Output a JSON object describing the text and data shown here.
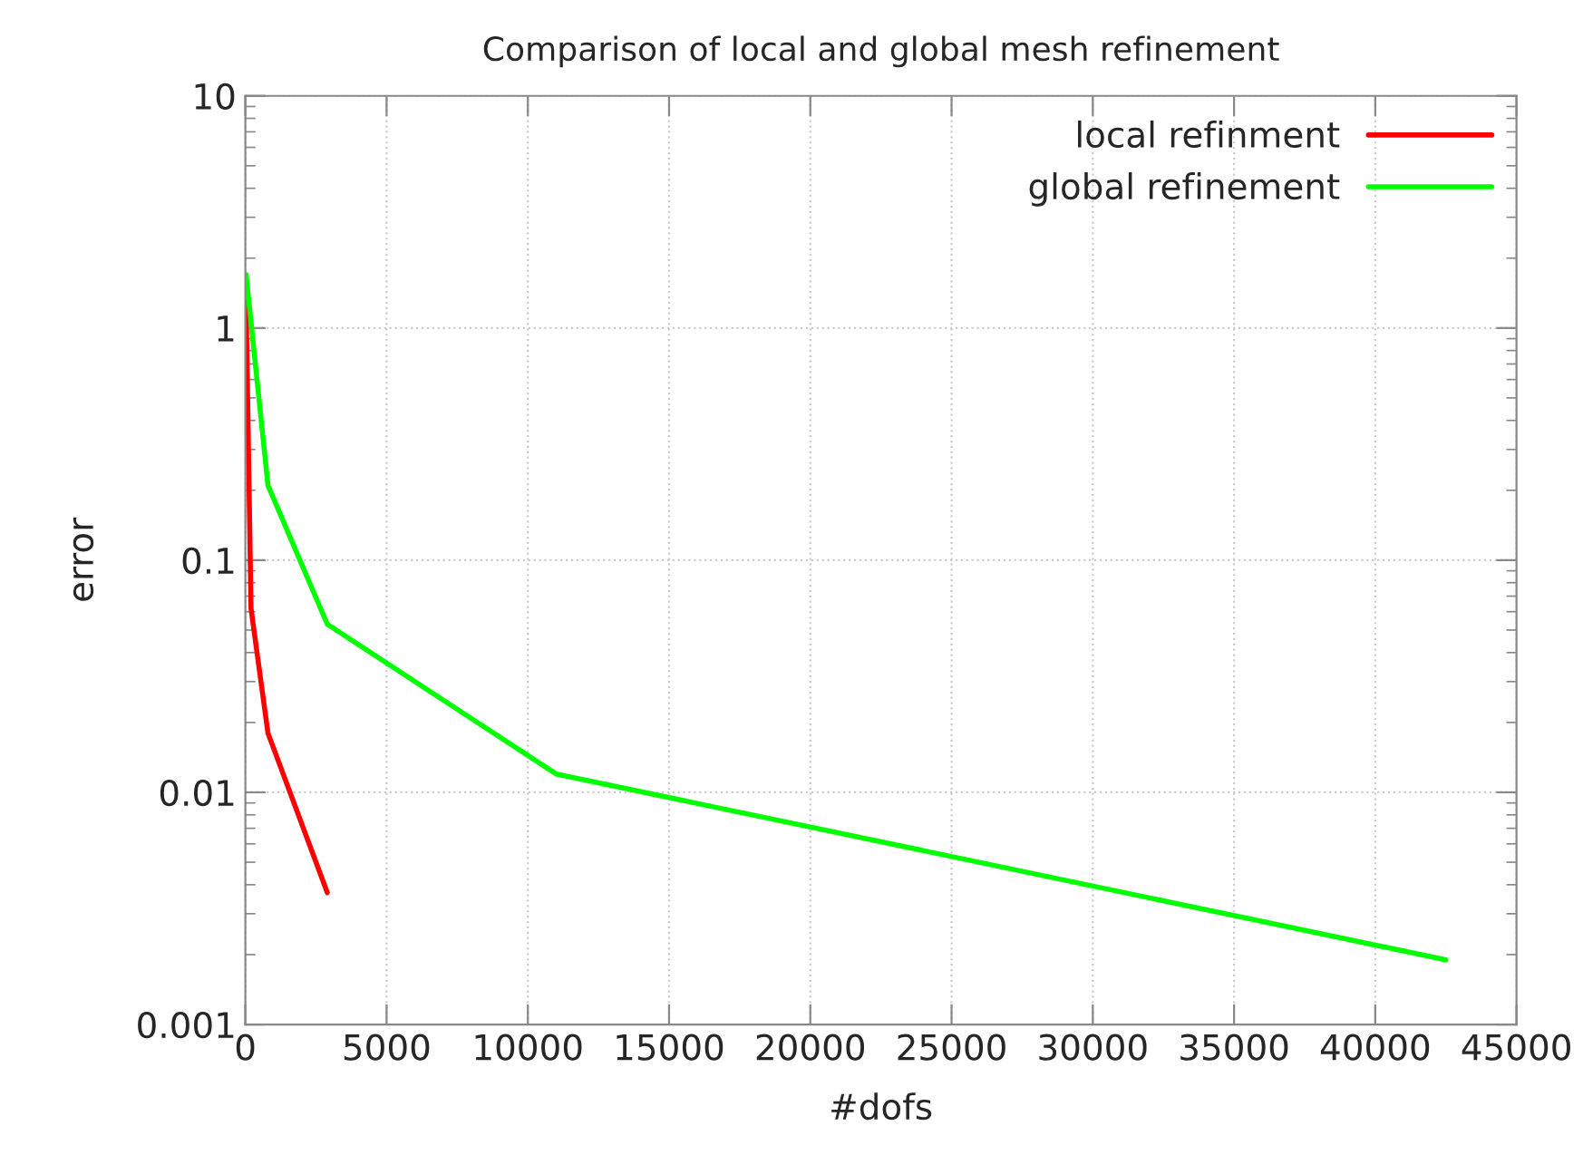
{
  "chart_data": {
    "type": "line",
    "title": "Comparison of local and global mesh refinement",
    "xlabel": "#dofs",
    "ylabel": "error",
    "series": [
      {
        "name": "local refinment",
        "color": "#ff0000",
        "x": [
          25,
          200,
          800,
          2900
        ],
        "values": [
          1.3,
          0.062,
          0.018,
          0.0037
        ]
      },
      {
        "name": "global refinement",
        "color": "#00ff00",
        "x": [
          25,
          800,
          2900,
          11000,
          42500
        ],
        "values": [
          1.7,
          0.21,
          0.053,
          0.012,
          0.0019
        ]
      }
    ],
    "log": "y",
    "xlim": [
      0,
      45000
    ],
    "xticks": [
      0,
      5000,
      10000,
      15000,
      20000,
      25000,
      30000,
      35000,
      40000,
      45000
    ],
    "ylim": [
      0.001,
      10
    ],
    "yticks": [
      0.001,
      0.01,
      0.1,
      1,
      10
    ],
    "grid": true,
    "legend": "top right",
    "line_style": "solid"
  }
}
